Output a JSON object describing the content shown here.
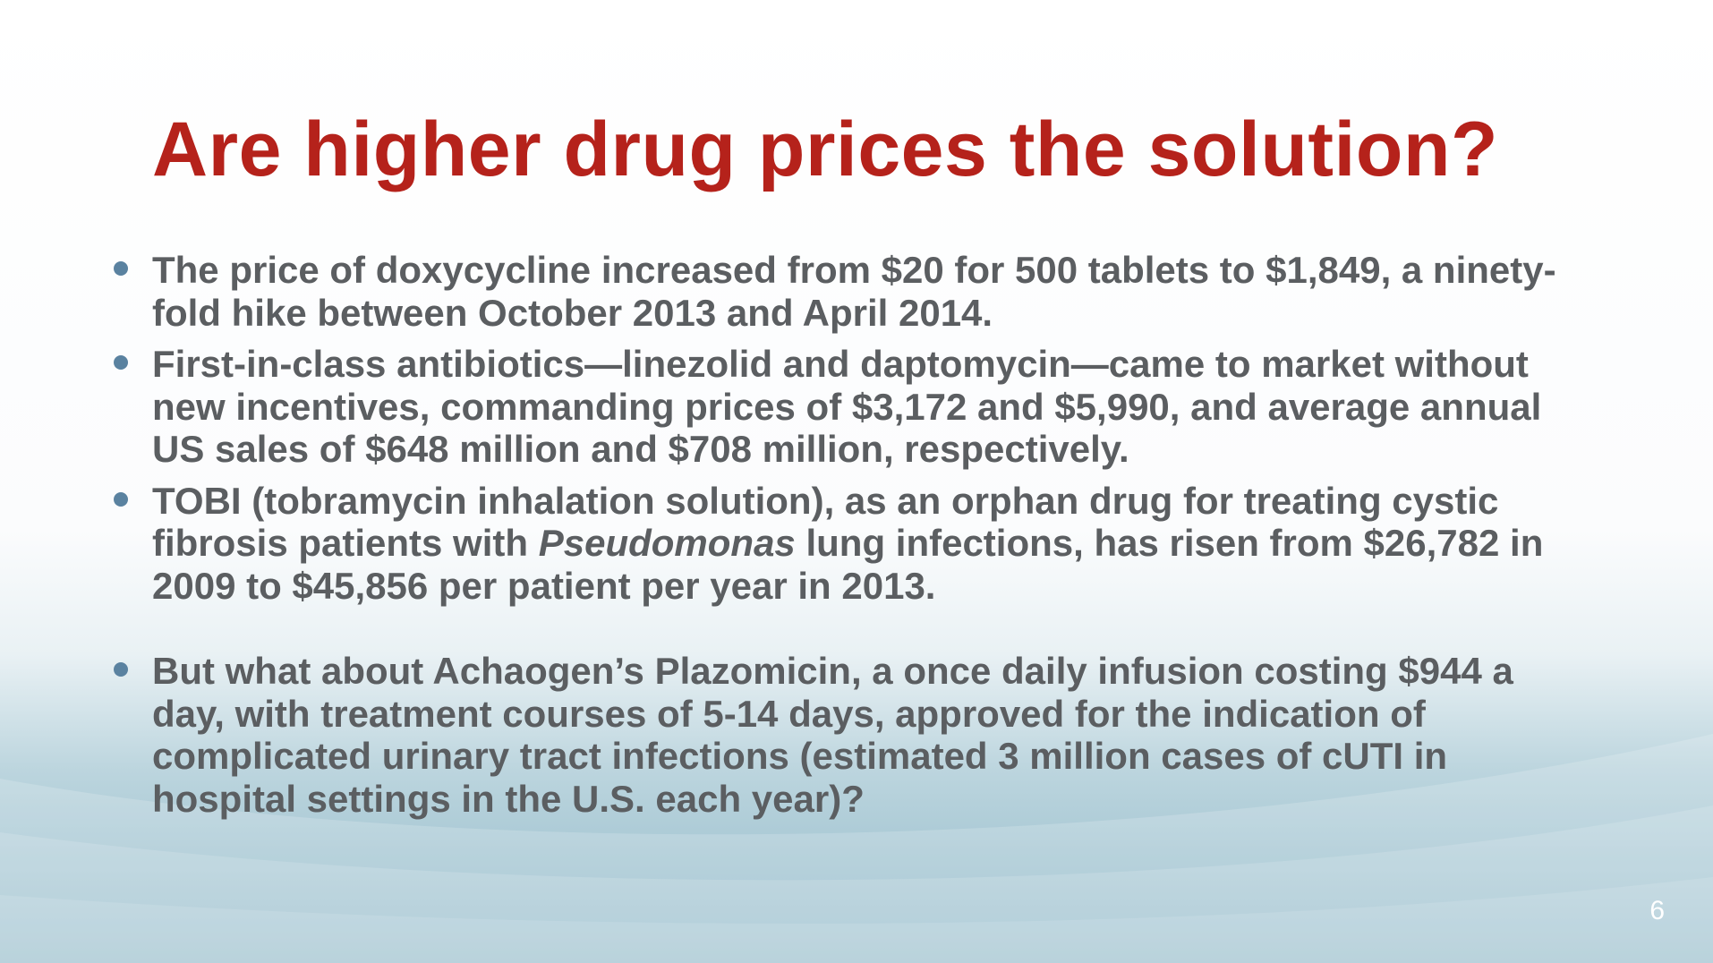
{
  "slide": {
    "title": "Are higher drug prices the solution?",
    "bullets": [
      {
        "text": "The price of doxycycline increased from $20 for 500 tablets to $1,849, a ninety-fold hike between October 2013 and April 2014."
      },
      {
        "text": "First-in-class antibiotics—linezolid and daptomycin—came to market without new incentives, commanding prices of $3,172 and $5,990, and average annual US sales of $648 million and $708 million, respectively."
      },
      {
        "text_before": "TOBI (tobramycin inhalation solution), as an orphan drug for treating cystic fibrosis patients with ",
        "italic": "Pseudomonas",
        "text_after": " lung infections, has risen from $26,782 in 2009 to $45,856 per patient per year in 2013."
      },
      {
        "text": "But what about Achaogen’s Plazomicin, a once daily infusion costing $944 a day, with treatment courses of 5-14 days, approved for the indication of complicated urinary tract infections (estimated 3 million cases of cUTI in hospital settings in the U.S. each year)?"
      }
    ],
    "page_number": "6"
  },
  "colors": {
    "title": "#b5221b",
    "body_text": "#5b5e61",
    "bullet": "#5a82a0",
    "background_wave": "#8fb8c8"
  }
}
